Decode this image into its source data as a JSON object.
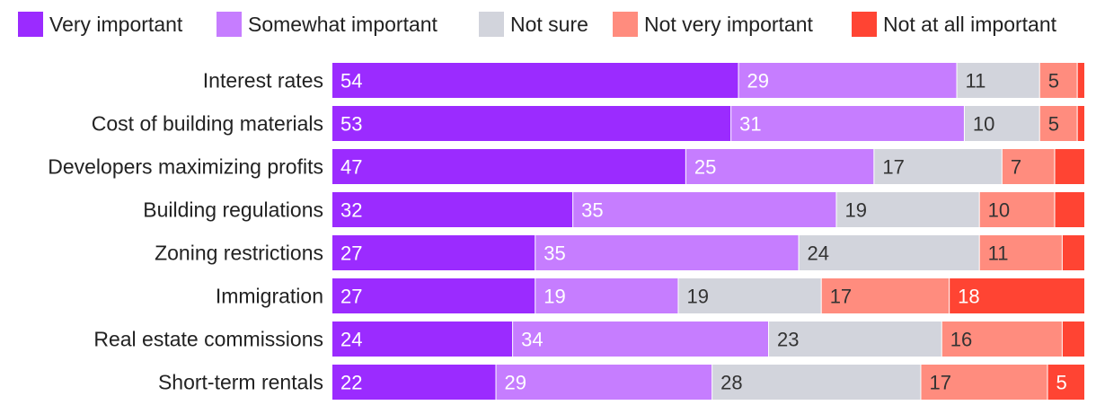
{
  "chart_data": {
    "type": "bar",
    "orientation": "horizontal",
    "stacked": true,
    "legend_position": "top",
    "grid": false,
    "categories": [
      "Interest rates",
      "Cost of building materials",
      "Developers maximizing profits",
      "Building regulations",
      "Zoning restrictions",
      "Immigration",
      "Real estate commissions",
      "Short-term rentals"
    ],
    "series": [
      {
        "name": "Very important",
        "color": "#9b2bff",
        "label_color": "#ffffff",
        "values": [
          54,
          53,
          47,
          32,
          27,
          27,
          24,
          22
        ]
      },
      {
        "name": "Somewhat important",
        "color": "#c67dff",
        "label_color": "#ffffff",
        "values": [
          29,
          31,
          25,
          35,
          35,
          19,
          34,
          29
        ]
      },
      {
        "name": "Not sure",
        "color": "#d2d4dc",
        "label_color": "#333333",
        "values": [
          11,
          10,
          17,
          19,
          24,
          19,
          23,
          28
        ]
      },
      {
        "name": "Not very important",
        "color": "#ff8c7e",
        "label_color": "#333333",
        "values": [
          5,
          5,
          7,
          10,
          11,
          17,
          16,
          17
        ]
      },
      {
        "name": "Not at all important",
        "color": "#ff4433",
        "label_color": "#ffffff",
        "values": [
          1,
          1,
          4,
          4,
          3,
          18,
          3,
          5
        ]
      }
    ],
    "shown_labels": [
      [
        true,
        true,
        true,
        true,
        false
      ],
      [
        true,
        true,
        true,
        true,
        false
      ],
      [
        true,
        true,
        true,
        true,
        false
      ],
      [
        true,
        true,
        true,
        true,
        false
      ],
      [
        true,
        true,
        true,
        true,
        false
      ],
      [
        true,
        true,
        true,
        true,
        true
      ],
      [
        true,
        true,
        true,
        true,
        false
      ],
      [
        true,
        true,
        true,
        true,
        true
      ]
    ]
  }
}
